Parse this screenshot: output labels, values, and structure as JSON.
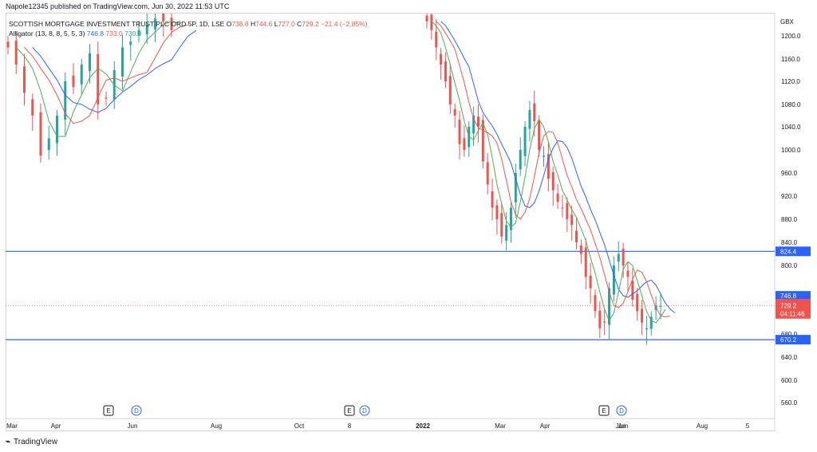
{
  "header": {
    "published": "Napole12345 published on TradingView.com, Jun 30, 2022 11:53 UTC"
  },
  "legend": {
    "symbol_line": "SCOTTISH MORTGAGE INVESTMENT TRUST PLC ORD 5P, 1D, LSE",
    "o_label": "O",
    "o_value": "738.8",
    "h_label": "H",
    "h_value": "744.6",
    "l_label": "L",
    "l_value": "727.0",
    "c_label": "C",
    "c_value": "729.2",
    "change": "−21.4 (−2.85%)",
    "alligator_label": "Alligator (13, 8, 8, 5, 5, 3)",
    "alligator_jaw": "746.8",
    "alligator_teeth": "733.0",
    "alligator_lips": "730.0"
  },
  "colors": {
    "up": "#26a69a",
    "down": "#ef5350",
    "jaw": "#2962ff",
    "teeth": "#ef5350",
    "lips": "#4caf50",
    "hline": "#2962ff"
  },
  "chart_data": {
    "type": "candlestick",
    "currency": "GBX",
    "ylim": [
      540,
      1230
    ],
    "y_ticks": [
      1200.0,
      1160.0,
      1120.0,
      1080.0,
      1040.0,
      1000.0,
      960.0,
      920.0,
      880.0,
      840.0,
      800.0,
      680.0,
      640.0,
      600.0,
      560.0
    ],
    "x_ticks": [
      "Mar",
      "Apr",
      "Jun",
      "Aug",
      "Oct",
      "8",
      "2022",
      "Mar",
      "Apr",
      "Jun",
      "Jun",
      "Aug",
      "5"
    ],
    "horizontal_levels": [
      824.4,
      670.2
    ],
    "current_price": 729.2,
    "countdown": "04:11:46",
    "last_labels": {
      "jaw": "746.8",
      "teeth": "733.0",
      "lips": "730.0",
      "close": "729.2",
      "upper_level": "824.4",
      "lower_level": "670.2"
    },
    "event_markers": [
      {
        "type": "E",
        "near": "May"
      },
      {
        "type": "D",
        "near": "Jun"
      },
      {
        "type": "E",
        "near": "Nov"
      },
      {
        "type": "D",
        "near": "Nov"
      },
      {
        "type": "E",
        "near": "May"
      },
      {
        "type": "D",
        "near": "Jun"
      }
    ],
    "segments": {
      "early": [
        1180,
        1150,
        1100,
        1060,
        990,
        1020,
        1060,
        1120,
        1110,
        1150,
        1170,
        1080,
        1090,
        1140,
        1180,
        1190,
        1210,
        1220,
        1230,
        1225,
        1210
      ],
      "late": [
        1225,
        1210,
        1180,
        1150,
        1120,
        1080,
        1060,
        1010,
        1000,
        1040,
        1060,
        1040,
        980,
        940,
        900,
        880,
        850,
        870,
        900,
        960,
        1000,
        1040,
        1070,
        1050,
        1000,
        990,
        950,
        930,
        910,
        900,
        880,
        870,
        840,
        820,
        780,
        760,
        720,
        690,
        700,
        760,
        800,
        820,
        800,
        780,
        740,
        720,
        700,
        690,
        710,
        730,
        729
      ]
    }
  },
  "footer": {
    "brand": "TradingView"
  }
}
